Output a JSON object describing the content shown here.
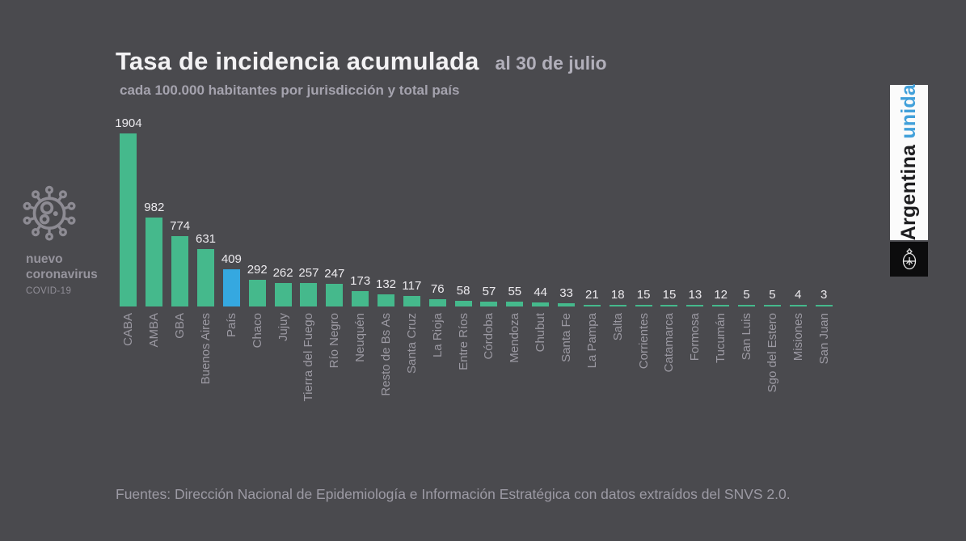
{
  "slide": {
    "title": "Tasa de incidencia acumulada",
    "date_note": "al 30 de julio",
    "subtitle": "cada 100.000 habitantes por jurisdicción y total país",
    "footer": "Fuentes: Dirección Nacional de Epidemiología e Información Estratégica con datos extraídos del SNVS 2.0."
  },
  "badge": {
    "title_line1": "nuevo",
    "title_line2": "coronavirus",
    "subtitle": "COVID-19"
  },
  "logo": {
    "word1": "Argentina ",
    "word2": "unida"
  },
  "colors": {
    "background": "#4a4a4e",
    "bar_green": "#45b98c",
    "bar_blue": "#35a8e0",
    "logo_blue": "#41a0da",
    "icon_gray": "#8d8b93"
  },
  "chart_data": {
    "type": "bar",
    "title": "Tasa de incidencia acumulada al 30 de julio",
    "subtitle": "cada 100.000 habitantes por jurisdicción y total país",
    "xlabel": "",
    "ylabel": "",
    "ylim": [
      0,
      1904
    ],
    "grid": false,
    "legend": false,
    "value_labels": true,
    "bar_color": "#45b98c",
    "highlight_category": "País",
    "highlight_color": "#35a8e0",
    "categories": [
      "CABA",
      "AMBA",
      "GBA",
      "Buenos Aires",
      "País",
      "Chaco",
      "Jujuy",
      "Tierra del Fuego",
      "Río Negro",
      "Neuquén",
      "Resto de Bs As",
      "Santa Cruz",
      "La Rioja",
      "Entre Ríos",
      "Córdoba",
      "Mendoza",
      "Chubut",
      "Santa Fe",
      "La Pampa",
      "Salta",
      "Corrientes",
      "Catamarca",
      "Formosa",
      "Tucumán",
      "San Luis",
      "Sgo del Estero",
      "Misiones",
      "San Juan"
    ],
    "values": [
      1904,
      982,
      774,
      631,
      409,
      292,
      262,
      257,
      247,
      173,
      132,
      117,
      76,
      58,
      57,
      55,
      44,
      33,
      21,
      18,
      15,
      15,
      13,
      12,
      5,
      5,
      4,
      3
    ]
  }
}
